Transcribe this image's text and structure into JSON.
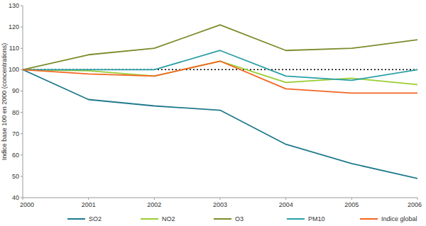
{
  "chart_data": {
    "type": "line",
    "y_label": "Indice base 100 en 2000 (concentrations)",
    "categories": [
      "2000",
      "2001",
      "2002",
      "2003",
      "2004",
      "2005",
      "2006"
    ],
    "series": [
      {
        "name": "SO2",
        "color": "#1f7a8c",
        "values": [
          100,
          86,
          83,
          81,
          65,
          56,
          49
        ]
      },
      {
        "name": "NO2",
        "color": "#9acd32",
        "values": [
          100,
          99.5,
          97,
          104,
          94,
          96,
          93
        ]
      },
      {
        "name": "O3",
        "color": "#7a8c2a",
        "values": [
          100,
          107,
          110,
          121,
          109,
          110,
          114
        ]
      },
      {
        "name": "PM10",
        "color": "#2a9fa5",
        "values": [
          100,
          100,
          100,
          109,
          97,
          95,
          100
        ]
      },
      {
        "name": "Indice global",
        "color": "#f26522",
        "values": [
          100,
          98,
          97,
          104,
          91,
          89,
          89
        ]
      }
    ],
    "reference_line": 100,
    "ylim": [
      40,
      130
    ],
    "yticks": [
      40,
      50,
      60,
      70,
      80,
      90,
      100,
      110,
      120,
      130
    ],
    "grid": false,
    "legend": "bottom"
  }
}
